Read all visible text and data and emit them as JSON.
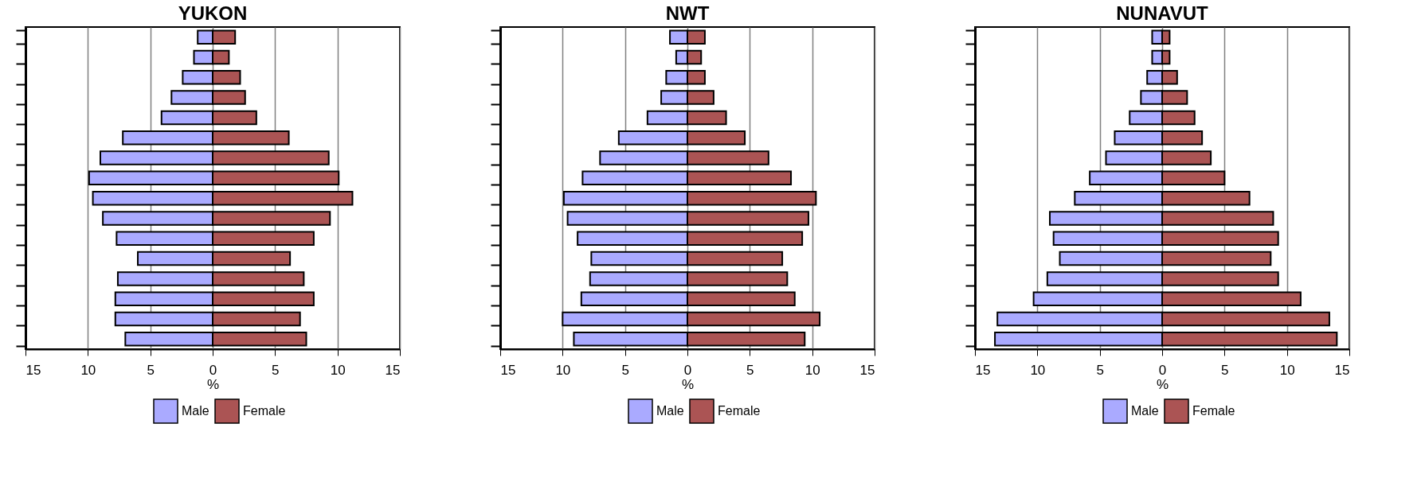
{
  "chart_data": [
    {
      "type": "bar",
      "title": "YUKON",
      "xlabel": "%",
      "orientation": "horizontal",
      "stacked": true,
      "categories": [
        null,
        null,
        null,
        null,
        null,
        null,
        null,
        null,
        null,
        null,
        null,
        null,
        null,
        null,
        null,
        null
      ],
      "series": [
        {
          "name": "Male",
          "color": "#aaaaff",
          "values": [
            -1.2,
            -1.5,
            -2.4,
            -3.3,
            -4.1,
            -7.2,
            -9.0,
            -9.9,
            -9.6,
            -8.8,
            -7.7,
            -6.0,
            -7.6,
            -7.8,
            -7.8,
            -7.0
          ]
        },
        {
          "name": "Female",
          "color": "#ab5454",
          "values": [
            1.8,
            1.3,
            2.2,
            2.6,
            3.5,
            6.1,
            9.3,
            10.1,
            11.2,
            9.4,
            8.1,
            6.2,
            7.3,
            8.1,
            7.0,
            7.5
          ]
        }
      ],
      "xlim": [
        -15,
        15
      ],
      "xticks": [
        {
          "value": -15,
          "label": "15"
        },
        {
          "value": -10,
          "label": "10"
        },
        {
          "value": -5,
          "label": "5"
        },
        0,
        5,
        10,
        15
      ],
      "grid": "x",
      "legend": "bottom",
      "tick_labels": "x"
    },
    {
      "type": "bar",
      "title": "NWT",
      "xlabel": "%",
      "orientation": "horizontal",
      "stacked": true,
      "categories": [
        null,
        null,
        null,
        null,
        null,
        null,
        null,
        null,
        null,
        null,
        null,
        null,
        null,
        null,
        null,
        null
      ],
      "series": [
        {
          "name": "Male",
          "color": "#aaaaff",
          "values": [
            -1.4,
            -0.9,
            -1.7,
            -2.1,
            -3.2,
            -5.5,
            -7.0,
            -8.4,
            -9.9,
            -9.6,
            -8.8,
            -7.7,
            -7.8,
            -8.5,
            -10.0,
            -9.1
          ]
        },
        {
          "name": "Female",
          "color": "#ab5454",
          "values": [
            1.4,
            1.1,
            1.4,
            2.1,
            3.1,
            4.6,
            6.5,
            8.3,
            10.3,
            9.7,
            9.2,
            7.6,
            8.0,
            8.6,
            10.6,
            9.4
          ]
        }
      ],
      "xlim": [
        -15,
        15
      ],
      "xticks": [
        {
          "value": -15,
          "label": "15"
        },
        {
          "value": -10,
          "label": "10"
        },
        {
          "value": -5,
          "label": "5"
        },
        0,
        5,
        10,
        15
      ],
      "grid": "x",
      "legend": "bottom",
      "tick_labels": "x"
    },
    {
      "type": "bar",
      "title": "NUNAVUT",
      "xlabel": "%",
      "orientation": "horizontal",
      "stacked": true,
      "categories": [
        null,
        null,
        null,
        null,
        null,
        null,
        null,
        null,
        null,
        null,
        null,
        null,
        null,
        null,
        null,
        null
      ],
      "series": [
        {
          "name": "Male",
          "color": "#aaaaff",
          "values": [
            -0.8,
            -0.8,
            -1.2,
            -1.7,
            -2.6,
            -3.8,
            -4.5,
            -5.8,
            -7.0,
            -9.0,
            -8.7,
            -8.2,
            -9.2,
            -10.3,
            -13.2,
            -13.4
          ]
        },
        {
          "name": "Female",
          "color": "#ab5454",
          "values": [
            0.6,
            0.6,
            1.2,
            2.0,
            2.6,
            3.2,
            3.9,
            5.0,
            7.0,
            8.9,
            9.3,
            8.7,
            9.3,
            11.1,
            13.4,
            14.0
          ]
        }
      ],
      "xlim": [
        -15,
        15
      ],
      "xticks": [
        {
          "value": -15,
          "label": "15"
        },
        {
          "value": -10,
          "label": "10"
        },
        {
          "value": -5,
          "label": "5"
        },
        0,
        5,
        10,
        15
      ],
      "grid": "x",
      "legend": "bottom",
      "tick_labels": "x"
    }
  ]
}
